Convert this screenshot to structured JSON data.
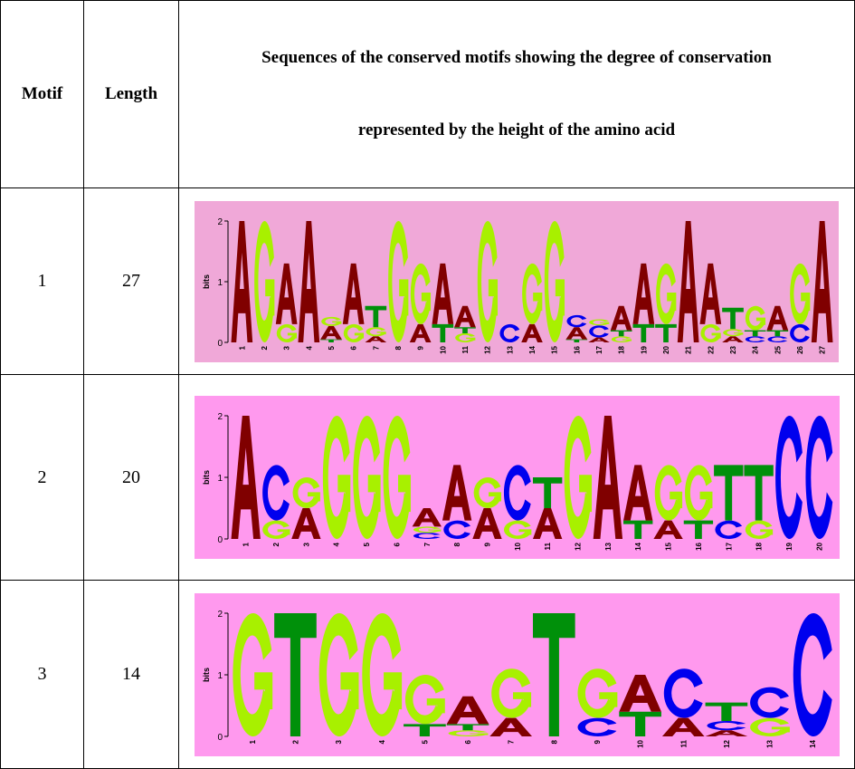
{
  "header": {
    "motif": "Motif",
    "length": "Length",
    "description_line1": "Sequences of the conserved motifs showing the degree of conservation",
    "description_line2": "represented by the height of the amino acid"
  },
  "rows": [
    {
      "motif": "1",
      "length": "27"
    },
    {
      "motif": "2",
      "length": "20"
    },
    {
      "motif": "3",
      "length": "14"
    }
  ],
  "colors": {
    "A": "#800000",
    "C": "#0000ee",
    "G": "#a8f000",
    "T": "#00900a",
    "bg1": "#f0a8d8",
    "bg2": "#ff99ee"
  },
  "chart_data": [
    {
      "type": "sequence-logo",
      "ylabel": "bits",
      "ylim": [
        0,
        2
      ],
      "yticks": [
        "0",
        "1",
        "2"
      ],
      "columns": [
        [
          [
            "A",
            2
          ]
        ],
        [
          [
            "G",
            2
          ]
        ],
        [
          [
            "G",
            0.3
          ],
          [
            "A",
            1.0
          ]
        ],
        [
          [
            "A",
            2
          ]
        ],
        [
          [
            "T",
            0.05
          ],
          [
            "A",
            0.22
          ],
          [
            "G",
            0.15
          ]
        ],
        [
          [
            "G",
            0.3
          ],
          [
            "A",
            1.0
          ]
        ],
        [
          [
            "A",
            0.1
          ],
          [
            "G",
            0.15
          ],
          [
            "T",
            0.35
          ]
        ],
        [
          [
            "G",
            2
          ]
        ],
        [
          [
            "A",
            0.3
          ],
          [
            "G",
            1.0
          ]
        ],
        [
          [
            "T",
            0.3
          ],
          [
            "A",
            1.0
          ]
        ],
        [
          [
            "G",
            0.15
          ],
          [
            "T",
            0.1
          ],
          [
            "A",
            0.35
          ]
        ],
        [
          [
            "G",
            2
          ]
        ],
        [
          [
            "C",
            0.3
          ]
        ],
        [
          [
            "A",
            0.3
          ],
          [
            "G",
            1.0
          ]
        ],
        [
          [
            "G",
            2
          ]
        ],
        [
          [
            "T",
            0.05
          ],
          [
            "A",
            0.2
          ],
          [
            "C",
            0.2
          ]
        ],
        [
          [
            "A",
            0.08
          ],
          [
            "C",
            0.2
          ],
          [
            "G",
            0.1
          ]
        ],
        [
          [
            "G",
            0.1
          ],
          [
            "T",
            0.1
          ],
          [
            "A",
            0.4
          ]
        ],
        [
          [
            "T",
            0.3
          ],
          [
            "A",
            1.0
          ]
        ],
        [
          [
            "T",
            0.3
          ],
          [
            "G",
            1.0
          ]
        ],
        [
          [
            "A",
            2
          ]
        ],
        [
          [
            "G",
            0.3
          ],
          [
            "A",
            1.0
          ]
        ],
        [
          [
            "A",
            0.1
          ],
          [
            "G",
            0.12
          ],
          [
            "T",
            0.35
          ]
        ],
        [
          [
            "C",
            0.1
          ],
          [
            "T",
            0.1
          ],
          [
            "G",
            0.4
          ]
        ],
        [
          [
            "C",
            0.1
          ],
          [
            "T",
            0.1
          ],
          [
            "A",
            0.4
          ]
        ],
        [
          [
            "C",
            0.3
          ],
          [
            "G",
            1.0
          ]
        ],
        [
          [
            "A",
            2
          ]
        ]
      ]
    },
    {
      "type": "sequence-logo",
      "ylabel": "bits",
      "ylim": [
        0,
        2
      ],
      "yticks": [
        "0",
        "1",
        "2"
      ],
      "columns": [
        [
          [
            "A",
            2
          ]
        ],
        [
          [
            "G",
            0.3
          ],
          [
            "C",
            0.9
          ]
        ],
        [
          [
            "A",
            0.5
          ],
          [
            "G",
            0.5
          ]
        ],
        [
          [
            "G",
            2
          ]
        ],
        [
          [
            "G",
            2
          ]
        ],
        [
          [
            "G",
            2
          ]
        ],
        [
          [
            "C",
            0.1
          ],
          [
            "G",
            0.1
          ],
          [
            "A",
            0.3
          ]
        ],
        [
          [
            "C",
            0.3
          ],
          [
            "A",
            0.9
          ]
        ],
        [
          [
            "A",
            0.5
          ],
          [
            "G",
            0.5
          ]
        ],
        [
          [
            "G",
            0.3
          ],
          [
            "C",
            0.9
          ]
        ],
        [
          [
            "A",
            0.5
          ],
          [
            "T",
            0.5
          ]
        ],
        [
          [
            "G",
            2
          ]
        ],
        [
          [
            "A",
            2
          ]
        ],
        [
          [
            "T",
            0.3
          ],
          [
            "A",
            0.9
          ]
        ],
        [
          [
            "A",
            0.3
          ],
          [
            "G",
            0.9
          ]
        ],
        [
          [
            "T",
            0.3
          ],
          [
            "G",
            0.9
          ]
        ],
        [
          [
            "C",
            0.3
          ],
          [
            "T",
            0.9
          ]
        ],
        [
          [
            "G",
            0.3
          ],
          [
            "T",
            0.9
          ]
        ],
        [
          [
            "C",
            2
          ]
        ],
        [
          [
            "C",
            2
          ]
        ]
      ]
    },
    {
      "type": "sequence-logo",
      "ylabel": "bits",
      "ylim": [
        0,
        2
      ],
      "yticks": [
        "0",
        "1",
        "2"
      ],
      "columns": [
        [
          [
            "G",
            2
          ]
        ],
        [
          [
            "T",
            2
          ]
        ],
        [
          [
            "G",
            2
          ]
        ],
        [
          [
            "G",
            2
          ]
        ],
        [
          [
            "T",
            0.2
          ],
          [
            "G",
            0.8
          ]
        ],
        [
          [
            "G",
            0.1
          ],
          [
            "T",
            0.1
          ],
          [
            "A",
            0.45
          ]
        ],
        [
          [
            "A",
            0.3
          ],
          [
            "G",
            0.8
          ]
        ],
        [
          [
            "T",
            2
          ]
        ],
        [
          [
            "C",
            0.3
          ],
          [
            "G",
            0.8
          ]
        ],
        [
          [
            "T",
            0.4
          ],
          [
            "A",
            0.6
          ]
        ],
        [
          [
            "A",
            0.3
          ],
          [
            "C",
            0.8
          ]
        ],
        [
          [
            "A",
            0.1
          ],
          [
            "C",
            0.15
          ],
          [
            "T",
            0.3
          ]
        ],
        [
          [
            "G",
            0.3
          ],
          [
            "C",
            0.5
          ]
        ],
        [
          [
            "C",
            2
          ]
        ]
      ]
    }
  ]
}
